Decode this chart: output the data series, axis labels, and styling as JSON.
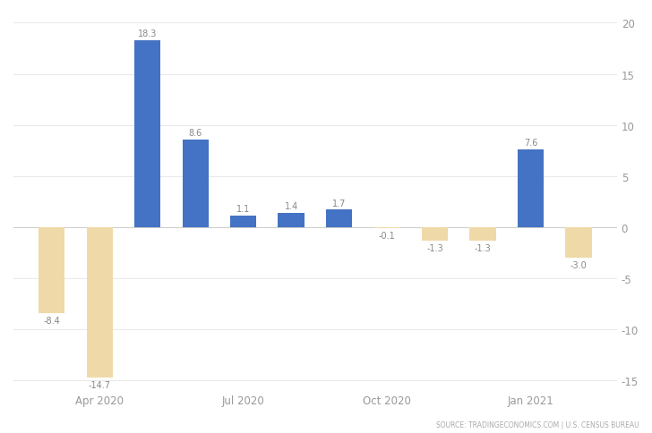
{
  "values": [
    -8.4,
    -14.7,
    18.3,
    8.6,
    1.1,
    1.4,
    1.7,
    -0.1,
    -1.3,
    -1.3,
    7.6,
    -3.0
  ],
  "months": [
    0,
    1,
    2,
    3,
    4,
    5,
    6,
    7,
    8,
    9,
    10,
    11
  ],
  "bar_color_positive": "#4472C4",
  "bar_color_negative": "#F0D9A8",
  "xtick_positions": [
    1,
    4,
    7,
    10
  ],
  "xtick_labels": [
    "Apr 2020",
    "Jul 2020",
    "Oct 2020",
    "Jan 2021"
  ],
  "ylim_min": -16,
  "ylim_max": 21,
  "ytick_values": [
    -15,
    -10,
    -5,
    0,
    5,
    10,
    15,
    20
  ],
  "xlim_min": -0.8,
  "xlim_max": 11.8,
  "bar_width": 0.55,
  "source_text": "SOURCE: TRADINGECONOMICS.COM | U.S. CENSUS BUREAU",
  "background_color": "#FFFFFF",
  "grid_color": "#E8E8E8",
  "label_color": "#888888",
  "tick_color": "#999999"
}
